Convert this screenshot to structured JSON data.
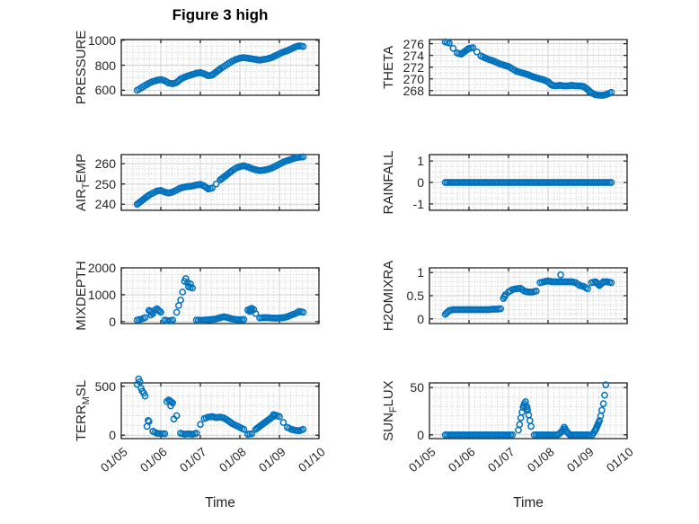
{
  "style": {
    "marker_color": "#0072BD",
    "axis_color": "#262626",
    "major_grid_color": "#d2d2d2",
    "minor_grid_color": "#c6c6c6",
    "background": "#ffffff"
  },
  "chart_data": {
    "type": "scatter",
    "title": "Figure 3 high",
    "xlabel": "Time",
    "marker": "o",
    "x_axis": {
      "lim": [
        5,
        10
      ],
      "tick_values": [
        5,
        6,
        7,
        8,
        9,
        10
      ],
      "tick_labels": [
        "01/05",
        "01/06",
        "01/07",
        "01/08",
        "01/09",
        "01/10"
      ],
      "minor_div": 7
    },
    "subplots": [
      {
        "name": "PRESSURE",
        "ylabel": {
          "pre": "PRESSURE",
          "sub": "",
          "post": ""
        },
        "ylim": [
          560,
          1005
        ],
        "ytick_values": [
          600,
          800,
          1000
        ],
        "ytick_labels": [
          "600",
          "800",
          "1000"
        ],
        "yminor_div": 4,
        "x": [
          5.4,
          5.5,
          5.6,
          5.7,
          5.8,
          5.9,
          6,
          6.1,
          6.2,
          6.3,
          6.4,
          6.5,
          6.6,
          6.7,
          6.8,
          6.9,
          7,
          7.1,
          7.2,
          7.3,
          7.4,
          7.5,
          7.6,
          7.7,
          7.8,
          7.9,
          8,
          8.1,
          8.2,
          8.3,
          8.4,
          8.5,
          8.6,
          8.7,
          8.8,
          8.9,
          9,
          9.1,
          9.2,
          9.3,
          9.4,
          9.5,
          9.6
        ],
        "y": [
          600,
          618,
          638,
          656,
          670,
          680,
          686,
          676,
          658,
          652,
          662,
          690,
          705,
          716,
          726,
          736,
          741,
          731,
          716,
          721,
          746,
          770,
          791,
          811,
          831,
          846,
          856,
          861,
          856,
          851,
          846,
          841,
          846,
          851,
          861,
          876,
          891,
          906,
          916,
          931,
          946,
          955,
          950
        ]
      },
      {
        "name": "THETA",
        "ylabel": {
          "pre": "THETA",
          "sub": "",
          "post": ""
        },
        "ylim": [
          267.2,
          276.7
        ],
        "ytick_values": [
          268,
          270,
          272,
          274,
          276
        ],
        "ytick_labels": [
          "268",
          "270",
          "272",
          "274",
          "276"
        ],
        "yminor_div": 2,
        "x": [
          5.4,
          5.5,
          5.6,
          5.7,
          5.8,
          5.9,
          6,
          6.1,
          6.2,
          6.3,
          6.4,
          6.5,
          6.6,
          6.7,
          6.8,
          6.9,
          7,
          7.1,
          7.2,
          7.3,
          7.4,
          7.5,
          7.6,
          7.7,
          7.8,
          7.9,
          8,
          8.1,
          8.2,
          8.3,
          8.4,
          8.5,
          8.6,
          8.7,
          8.8,
          8.9,
          9,
          9.1,
          9.2,
          9.3,
          9.4,
          9.5,
          9.6
        ],
        "y": [
          276.3,
          276.1,
          275.2,
          274.4,
          274.2,
          274.7,
          275.2,
          275.3,
          274.6,
          273.9,
          273.6,
          273.3,
          273.1,
          272.8,
          272.5,
          272.3,
          272.1,
          271.7,
          271.3,
          271.1,
          270.9,
          270.7,
          270.4,
          270.2,
          270,
          269.8,
          269.5,
          268.9,
          268.8,
          268.9,
          268.8,
          268.8,
          268.9,
          268.8,
          268.8,
          268.7,
          268.2,
          267.6,
          267.3,
          267.2,
          267.2,
          267.4,
          267.7
        ]
      },
      {
        "name": "AIR_TEMP",
        "ylabel": {
          "pre": "AIR",
          "sub": "T",
          "post": "EMP"
        },
        "ylim": [
          237,
          264.5
        ],
        "ytick_values": [
          240,
          250,
          260
        ],
        "ytick_labels": [
          "240",
          "250",
          "260"
        ],
        "yminor_div": 4,
        "x": [
          5.4,
          5.5,
          5.6,
          5.7,
          5.8,
          5.9,
          6,
          6.1,
          6.2,
          6.3,
          6.4,
          6.5,
          6.6,
          6.7,
          6.8,
          6.9,
          7,
          7.1,
          7.2,
          7.3,
          7.4,
          7.5,
          7.6,
          7.7,
          7.8,
          7.9,
          8,
          8.1,
          8.2,
          8.3,
          8.4,
          8.5,
          8.6,
          8.7,
          8.8,
          8.9,
          9,
          9.1,
          9.2,
          9.3,
          9.4,
          9.5,
          9.6
        ],
        "y": [
          240,
          241.5,
          243,
          244.5,
          245.5,
          246.5,
          246.8,
          246,
          245.5,
          246,
          247,
          248,
          248.5,
          248.8,
          249,
          249.5,
          249.8,
          249,
          247.5,
          248,
          250,
          252,
          253.5,
          255,
          256.5,
          257.8,
          258.6,
          259,
          258.4,
          257.6,
          257,
          256.6,
          256.8,
          257.2,
          257.8,
          258.8,
          259.8,
          260.8,
          261.5,
          262.2,
          262.8,
          263.2,
          263.4
        ]
      },
      {
        "name": "RAINFALL",
        "ylabel": {
          "pre": "RAINFALL",
          "sub": "",
          "post": ""
        },
        "ylim": [
          -1.3,
          1.3
        ],
        "ytick_values": [
          -1,
          0,
          1
        ],
        "ytick_labels": [
          "-1",
          "0",
          "1"
        ],
        "yminor_div": 4,
        "x": [
          5.4,
          5.5,
          5.6,
          5.7,
          5.8,
          5.9,
          6,
          6.1,
          6.2,
          6.3,
          6.4,
          6.5,
          6.6,
          6.7,
          6.8,
          6.9,
          7,
          7.1,
          7.2,
          7.3,
          7.4,
          7.5,
          7.6,
          7.7,
          7.8,
          7.9,
          8,
          8.1,
          8.2,
          8.3,
          8.4,
          8.5,
          8.6,
          8.7,
          8.8,
          8.9,
          9,
          9.1,
          9.2,
          9.3,
          9.4,
          9.5,
          9.6
        ],
        "y": [
          0,
          0,
          0,
          0,
          0,
          0,
          0,
          0,
          0,
          0,
          0,
          0,
          0,
          0,
          0,
          0,
          0,
          0,
          0,
          0,
          0,
          0,
          0,
          0,
          0,
          0,
          0,
          0,
          0,
          0,
          0,
          0,
          0,
          0,
          0,
          0,
          0,
          0,
          0,
          0,
          0,
          0,
          0
        ]
      },
      {
        "name": "MIXDEPTH",
        "ylabel": {
          "pre": "MIXDEPTH",
          "sub": "",
          "post": ""
        },
        "ylim": [
          -70,
          2000
        ],
        "ytick_values": [
          0,
          1000,
          2000
        ],
        "ytick_labels": [
          "0",
          "1000",
          "2000"
        ],
        "yminor_div": 4,
        "x": [
          5.4,
          5.5,
          5.6,
          5.7,
          5.8,
          5.9,
          6,
          6.1,
          6.2,
          6.3,
          6.4,
          6.5,
          6.6,
          6.7,
          6.8,
          6.9,
          7,
          7.1,
          7.2,
          7.3,
          7.4,
          7.5,
          7.6,
          7.7,
          7.8,
          7.9,
          8,
          8.1,
          8.2,
          8.3,
          8.4,
          8.5,
          8.6,
          8.7,
          8.8,
          8.9,
          9,
          9.1,
          9.2,
          9.3,
          9.4,
          9.5,
          9.6,
          5.75,
          5.85,
          6.45,
          6.55,
          6.63,
          6.68,
          6.75,
          8.25,
          8.35
        ],
        "y": [
          60,
          90,
          150,
          420,
          300,
          480,
          350,
          60,
          30,
          60,
          350,
          800,
          1500,
          1300,
          1250,
          60,
          50,
          60,
          70,
          80,
          100,
          150,
          180,
          150,
          100,
          80,
          70,
          80,
          430,
          500,
          300,
          140,
          150,
          150,
          140,
          130,
          140,
          150,
          180,
          250,
          300,
          380,
          350,
          250,
          430,
          600,
          1100,
          1600,
          1450,
          1400,
          380,
          450
        ]
      },
      {
        "name": "H2OMIXRA",
        "ylabel": {
          "pre": "H2OMIXRA",
          "sub": "",
          "post": ""
        },
        "ylim": [
          -0.1,
          1.1
        ],
        "ytick_values": [
          0,
          0.5,
          1
        ],
        "ytick_labels": [
          "0",
          "0.5",
          "1"
        ],
        "yminor_div": 5,
        "x": [
          5.4,
          5.5,
          5.6,
          5.7,
          5.8,
          5.9,
          6,
          6.1,
          6.2,
          6.3,
          6.4,
          6.5,
          6.6,
          6.7,
          6.8,
          6.9,
          7,
          7.1,
          7.2,
          7.3,
          7.4,
          7.5,
          7.6,
          7.7,
          7.8,
          7.9,
          8,
          8.1,
          8.2,
          8.3,
          8.4,
          8.5,
          8.6,
          8.7,
          8.8,
          8.9,
          9,
          9.1,
          9.2,
          9.3,
          9.4,
          9.5,
          9.6,
          6.87,
          6.92,
          8.32
        ],
        "y": [
          0.1,
          0.18,
          0.2,
          0.2,
          0.2,
          0.2,
          0.2,
          0.2,
          0.2,
          0.2,
          0.2,
          0.2,
          0.21,
          0.21,
          0.22,
          0.48,
          0.58,
          0.63,
          0.65,
          0.66,
          0.6,
          0.58,
          0.58,
          0.6,
          0.78,
          0.8,
          0.82,
          0.8,
          0.8,
          0.8,
          0.8,
          0.8,
          0.8,
          0.78,
          0.72,
          0.7,
          0.65,
          0.78,
          0.8,
          0.72,
          0.8,
          0.8,
          0.78,
          0.44,
          0.52,
          0.95
        ]
      },
      {
        "name": "TERR_MSL",
        "ylabel": {
          "pre": "TERR",
          "sub": "M",
          "post": "SL"
        },
        "ylim": [
          -35,
          535
        ],
        "ytick_values": [
          0,
          500
        ],
        "ytick_labels": [
          "0",
          "500"
        ],
        "yminor_div": 5,
        "x": [
          5.4,
          5.5,
          5.6,
          5.7,
          5.8,
          5.9,
          6,
          6.1,
          6.2,
          6.3,
          6.4,
          6.5,
          6.6,
          6.7,
          6.8,
          6.9,
          7,
          7.1,
          7.2,
          7.3,
          7.4,
          7.5,
          7.6,
          7.7,
          7.8,
          7.9,
          8,
          8.1,
          8.2,
          8.3,
          8.4,
          8.5,
          8.6,
          8.7,
          8.8,
          8.9,
          9,
          9.1,
          9.2,
          9.3,
          9.4,
          9.5,
          9.6,
          5.44,
          5.47,
          5.53,
          5.57,
          5.65,
          5.68,
          6.15,
          6.25,
          6.33,
          8.85
        ],
        "y": [
          520,
          480,
          400,
          140,
          40,
          20,
          15,
          15,
          360,
          330,
          200,
          20,
          10,
          15,
          10,
          20,
          110,
          170,
          185,
          190,
          180,
          185,
          175,
          150,
          120,
          100,
          80,
          60,
          10,
          15,
          60,
          90,
          120,
          150,
          180,
          205,
          190,
          130,
          80,
          60,
          50,
          45,
          60,
          575,
          545,
          450,
          430,
          90,
          150,
          345,
          300,
          165,
          210
        ]
      },
      {
        "name": "SUN_FLUX",
        "ylabel": {
          "pre": "SUN",
          "sub": "F",
          "post": "LUX"
        },
        "ylim": [
          -4,
          55
        ],
        "ytick_values": [
          0,
          50
        ],
        "ytick_labels": [
          "0",
          "50"
        ],
        "yminor_div": 5,
        "x": [
          5.4,
          5.5,
          5.6,
          5.7,
          5.8,
          5.9,
          6,
          6.1,
          6.2,
          6.3,
          6.4,
          6.5,
          6.6,
          6.7,
          6.8,
          6.9,
          7,
          7.1,
          7.25,
          7.28,
          7.31,
          7.34,
          7.37,
          7.4,
          7.43,
          7.46,
          7.48,
          7.51,
          7.54,
          7.57,
          7.65,
          7.75,
          7.85,
          7.95,
          8.05,
          8.15,
          8.25,
          8.36,
          8.41,
          8.46,
          8.55,
          8.65,
          8.75,
          8.85,
          8.95,
          9.05,
          9.12,
          9.18,
          9.22,
          9.26,
          9.3,
          9.33,
          9.36,
          9.4,
          9.43,
          9.46
        ],
        "y": [
          0,
          0,
          0,
          0,
          0,
          0,
          0,
          0,
          0,
          0,
          0,
          0,
          0,
          0,
          0,
          0,
          0,
          0,
          5,
          11,
          18,
          24,
          29,
          33,
          35,
          30,
          26,
          21,
          15,
          9,
          0,
          0,
          0,
          0,
          0,
          0,
          0,
          4,
          8,
          4,
          0,
          0,
          0,
          0,
          0,
          0,
          0,
          4,
          7,
          11,
          15,
          20,
          26,
          33,
          42,
          53
        ]
      }
    ]
  }
}
